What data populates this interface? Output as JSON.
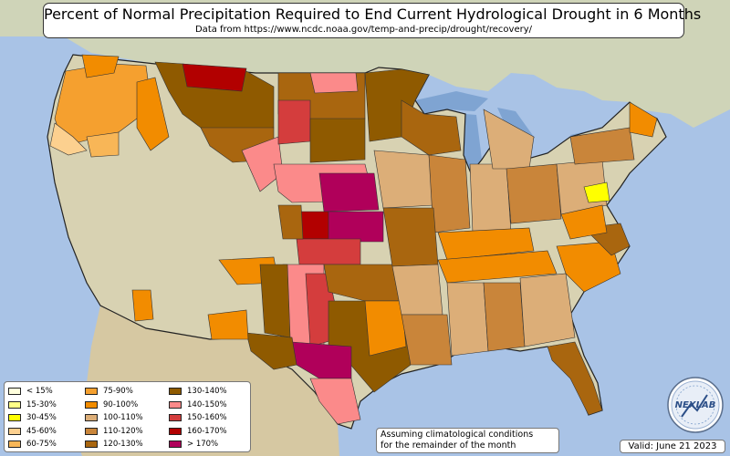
{
  "title": "Percent of Normal Precipitation Required to End Current Hydrological Drought in 6 Months",
  "subtitle": "Data from https://www.ncdc.noaa.gov/temp-and-precip/drought/recovery/",
  "note": {
    "line1": "Assuming climatological conditions",
    "line2": "for the remainder of the month"
  },
  "valid": "Valid: June 21 2023",
  "logo_text": "NEXLAB",
  "colors": {
    "ocean": "#a9c3e6",
    "land": "#d8d2b2",
    "border": "#222222"
  },
  "legend": {
    "col1": [
      {
        "label": "< 15%",
        "color": "#ffffdd"
      },
      {
        "label": "15-30%",
        "color": "#ffff88"
      },
      {
        "label": "30-45%",
        "color": "#ffff00"
      },
      {
        "label": "45-60%",
        "color": "#fcd08f"
      },
      {
        "label": "60-75%",
        "color": "#f8b657"
      }
    ],
    "col2": [
      {
        "label": "75-90%",
        "color": "#f5a02f"
      },
      {
        "label": "90-100%",
        "color": "#f28c00"
      },
      {
        "label": "100-110%",
        "color": "#dcae78"
      },
      {
        "label": "110-120%",
        "color": "#c9853a"
      },
      {
        "label": "120-130%",
        "color": "#a9660f"
      }
    ],
    "col3": [
      {
        "label": "130-140%",
        "color": "#8f5a00"
      },
      {
        "label": "140-150%",
        "color": "#fb8a8a"
      },
      {
        "label": "150-160%",
        "color": "#d43d3d"
      },
      {
        "label": "160-170%",
        "color": "#b20000"
      },
      {
        "label": "> 170%",
        "color": "#b0005a"
      }
    ]
  }
}
